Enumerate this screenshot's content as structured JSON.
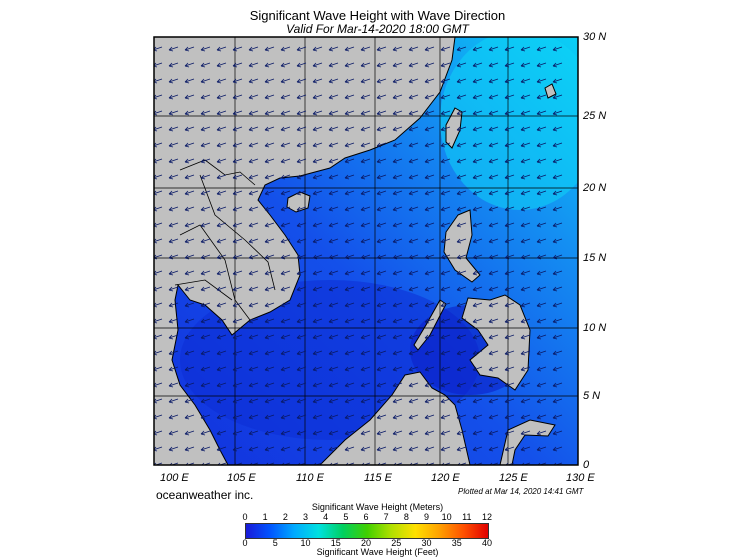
{
  "header": {
    "title": "Significant Wave Height with Wave Direction",
    "subtitle": "Valid For Mar-14-2020 18:00 GMT"
  },
  "map": {
    "lon_labels": [
      "100 E",
      "105 E",
      "110 E",
      "115 E",
      "120 E",
      "125 E",
      "130 E"
    ],
    "lat_labels": [
      "30 N",
      "25 N",
      "20 N",
      "15 N",
      "10 N",
      "5 N",
      "0"
    ],
    "land_color": "#c0c0c0",
    "sea_color_low": "#0f3fe0",
    "sea_color_high": "#0ab4ee",
    "grid_color": "#000000"
  },
  "footer": {
    "credit": "oceanweather inc.",
    "plotted": "Plotted at Mar 14, 2020 14:41 GMT"
  },
  "colorbar": {
    "meters_title": "Significant Wave Height (Meters)",
    "feet_title": "Significant Wave Height (Feet)",
    "meters_ticks": [
      "0",
      "1",
      "2",
      "3",
      "4",
      "5",
      "6",
      "7",
      "8",
      "9",
      "10",
      "11",
      "12"
    ],
    "feet_ticks": [
      "0",
      "5",
      "10",
      "15",
      "20",
      "25",
      "30",
      "35",
      "40"
    ],
    "colors": [
      "#1a1ad8",
      "#0055ff",
      "#00aaff",
      "#00e0e0",
      "#00d060",
      "#40d000",
      "#b0e000",
      "#ffe000",
      "#ffa000",
      "#ff5000",
      "#e00000"
    ]
  }
}
